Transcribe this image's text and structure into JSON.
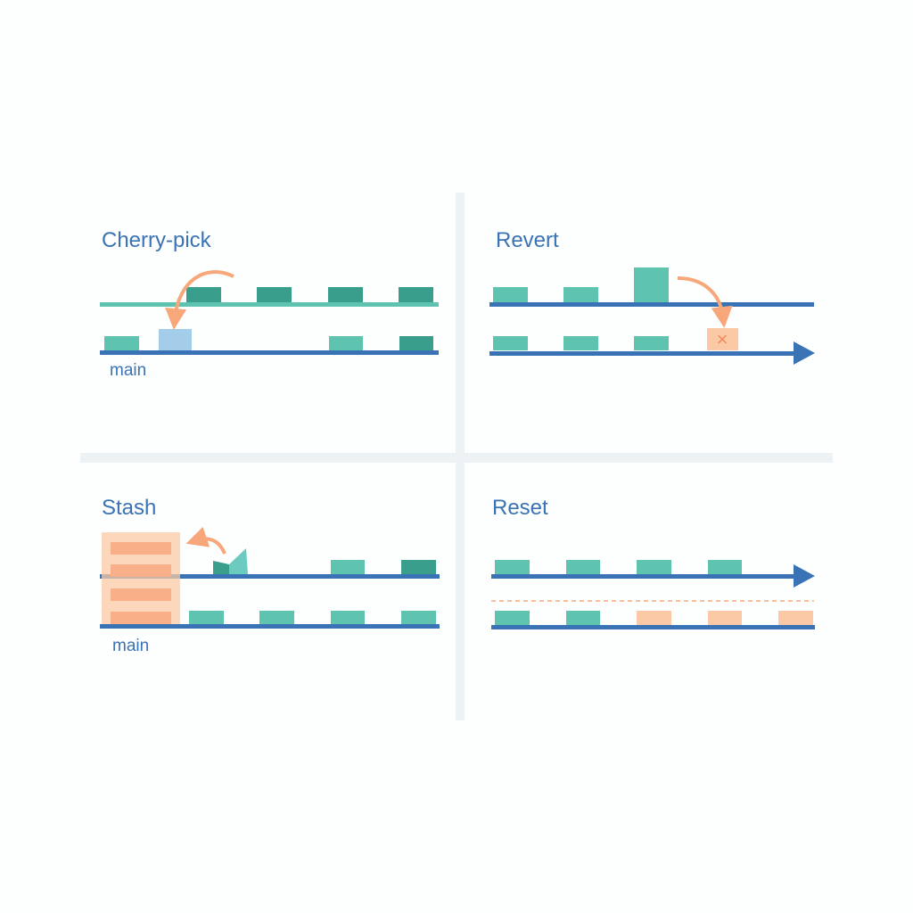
{
  "panels": {
    "cherry_pick": {
      "title": "Cherry-pick",
      "branch_label": "main"
    },
    "revert": {
      "title": "Revert",
      "revert_mark": "×"
    },
    "stash": {
      "title": "Stash",
      "branch_label": "main"
    },
    "reset": {
      "title": "Reset"
    }
  },
  "colors": {
    "main_line": "#3a73b5",
    "branch_line": "#5ec4b0",
    "commit": "#5ec4b0",
    "commit_dark": "#3a9e8c",
    "picked_commit": "#a3cde9",
    "discarded": "#fbc9a6",
    "arrow": "#f7a77a",
    "divider": "#edf2f5"
  }
}
